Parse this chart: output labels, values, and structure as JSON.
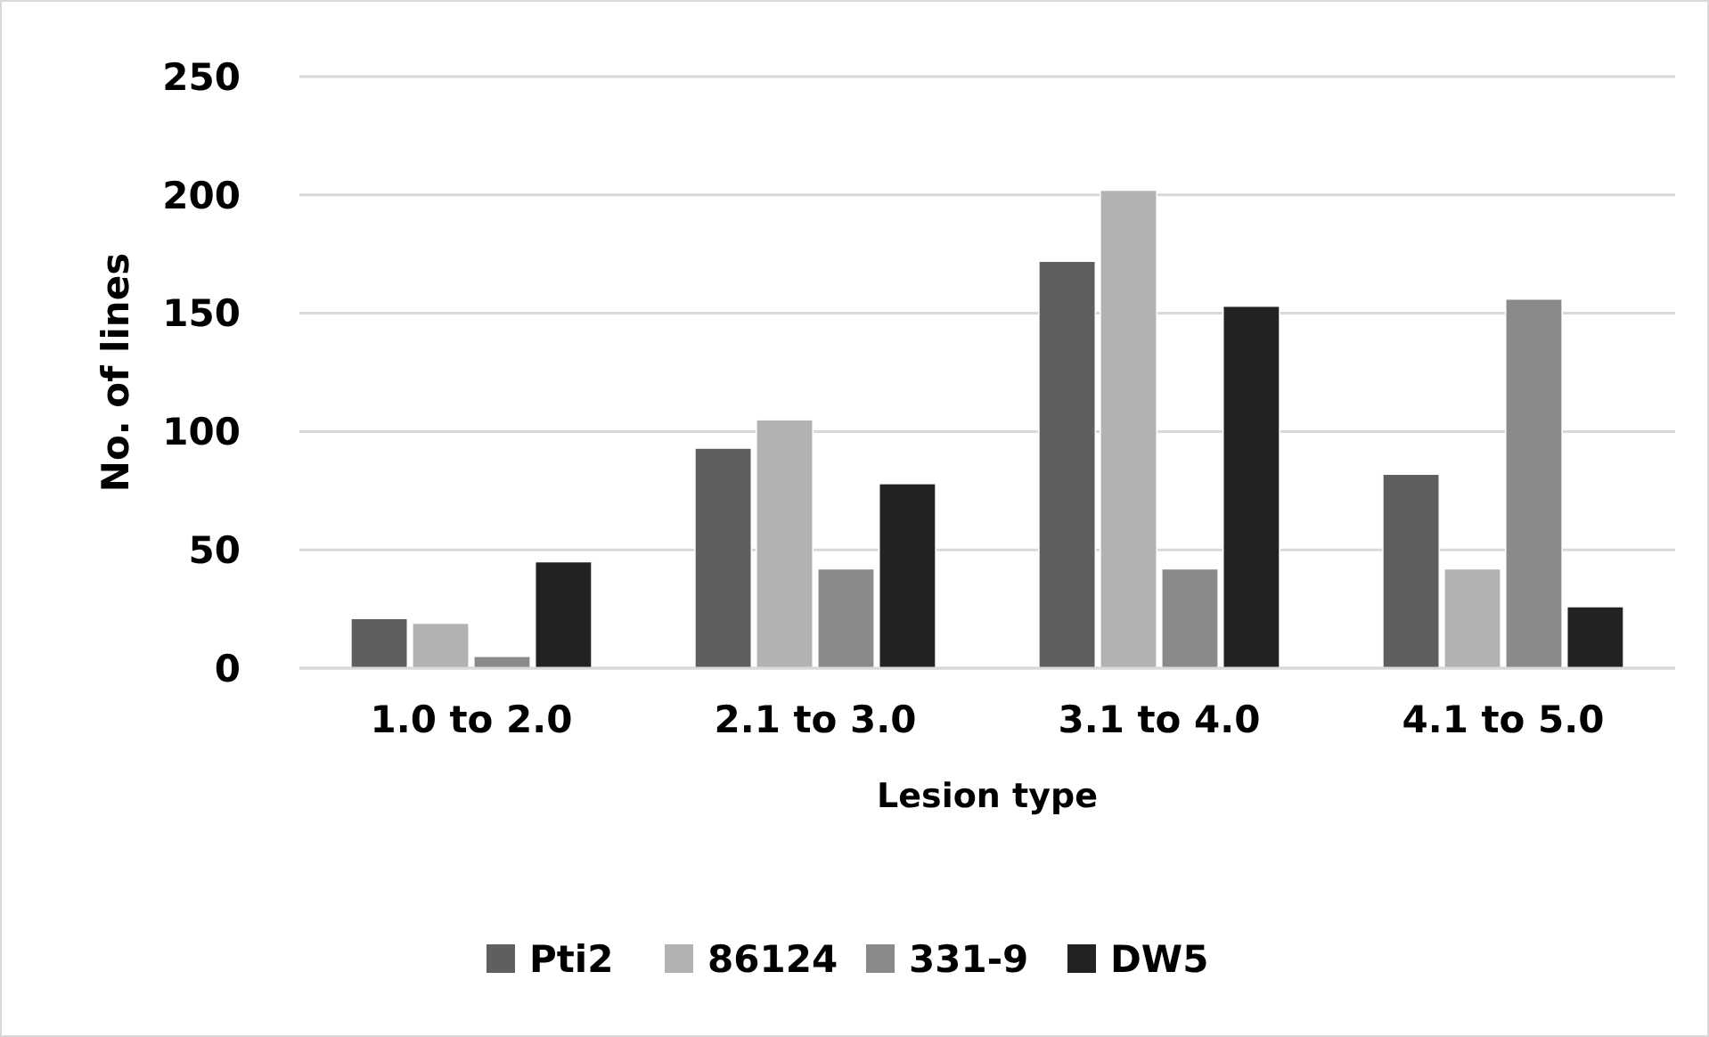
{
  "chart_data": {
    "type": "bar",
    "xlabel": "Lesion type",
    "ylabel": "No. of lines",
    "categories": [
      "1.0 to 2.0",
      "2.1 to 3.0",
      "3.1 to 4.0",
      "4.1 to 5.0"
    ],
    "series": [
      {
        "name": "Pti2",
        "color": "#5f5f5f",
        "values": [
          21,
          93,
          172,
          82
        ]
      },
      {
        "name": "86124",
        "color": "#b2b2b2",
        "values": [
          19,
          105,
          202,
          42
        ]
      },
      {
        "name": "331-9",
        "color": "#8a8a8a",
        "values": [
          5,
          42,
          42,
          156
        ]
      },
      {
        "name": "DW5",
        "color": "#222222",
        "values": [
          45,
          78,
          153,
          26
        ]
      }
    ],
    "ylim": [
      0,
      250
    ],
    "yticks": [
      0,
      50,
      100,
      150,
      200,
      250
    ],
    "grid": "y",
    "legend": "bottom"
  }
}
